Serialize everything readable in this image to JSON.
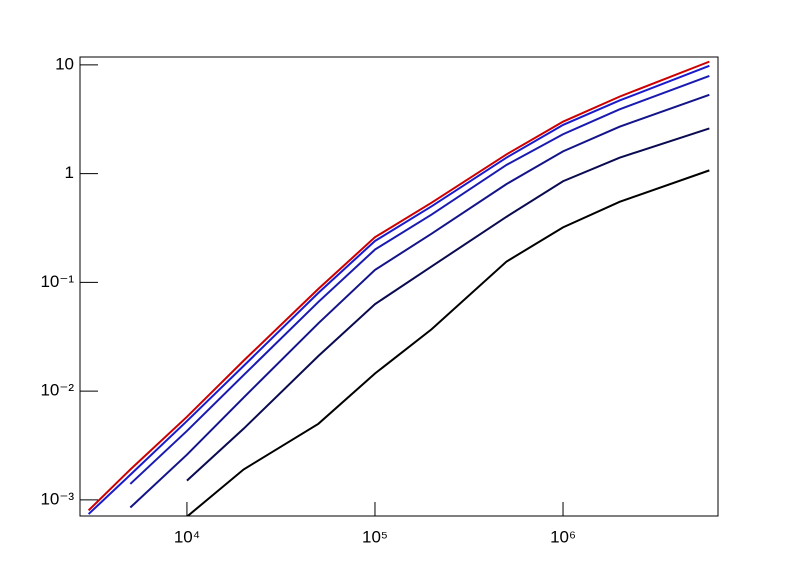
{
  "chart_data": {
    "type": "line",
    "x": [
      3000,
      5000,
      10000,
      20000,
      50000,
      100000,
      200000,
      500000,
      1000000,
      2000000,
      6000000
    ],
    "series": [
      {
        "color": "#cc0000",
        "values": [
          0.0008,
          0.0019,
          0.0058,
          0.019,
          0.087,
          0.26,
          0.54,
          1.5,
          3.0,
          5.1,
          10.7
        ]
      },
      {
        "color": "#1a1acc",
        "values": [
          0.00074,
          0.0017,
          0.0053,
          0.017,
          0.08,
          0.24,
          0.5,
          1.4,
          2.8,
          4.7,
          9.8
        ]
      },
      {
        "color": "#1a1ab0",
        "values": [
          null,
          0.0014,
          0.0043,
          0.014,
          0.066,
          0.2,
          0.42,
          1.2,
          2.3,
          3.9,
          7.9
        ]
      },
      {
        "color": "#14148a",
        "values": [
          null,
          0.00085,
          0.0026,
          0.0087,
          0.042,
          0.13,
          0.28,
          0.8,
          1.6,
          2.7,
          5.3
        ]
      },
      {
        "color": "#0a0a50",
        "values": [
          null,
          null,
          0.0015,
          0.0045,
          0.021,
          0.063,
          0.14,
          0.4,
          0.85,
          1.4,
          2.6
        ]
      },
      {
        "color": "#000000",
        "values": [
          null,
          null,
          0.0007,
          0.0019,
          0.005,
          0.0145,
          0.037,
          0.155,
          0.32,
          0.55,
          1.07
        ]
      }
    ],
    "xlim": [
      2700,
      6670000
    ],
    "ylim": [
      0.00071,
      11.8
    ],
    "xscale": "log",
    "yscale": "log",
    "xticks": [
      {
        "value": 10000,
        "label": "10⁴"
      },
      {
        "value": 100000,
        "label": "10⁵"
      },
      {
        "value": 1000000,
        "label": "10⁶"
      }
    ],
    "yticks": [
      {
        "value": 0.001,
        "label": "10⁻³"
      },
      {
        "value": 0.01,
        "label": "10⁻²"
      },
      {
        "value": 0.1,
        "label": "10⁻¹"
      },
      1,
      10
    ]
  }
}
